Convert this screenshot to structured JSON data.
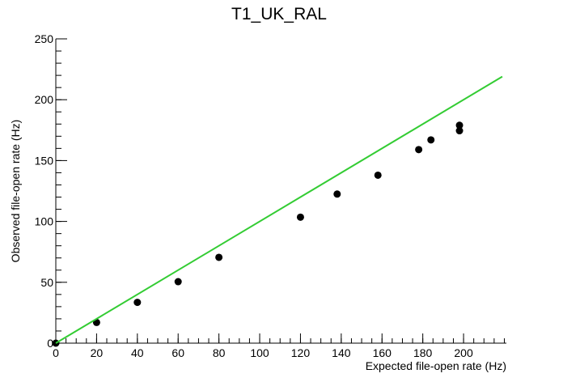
{
  "chart_data": {
    "type": "scatter",
    "title": "T1_UK_RAL",
    "x_label": "Expected file-open rate (Hz)",
    "y_label": "Observed file-open rate (Hz)",
    "series": [
      {
        "style": "markers",
        "color": "#000000",
        "x": [
          0,
          20,
          40,
          60,
          80,
          120,
          138,
          158,
          178,
          184,
          198,
          198
        ],
        "values": [
          0,
          17,
          33.5,
          50.5,
          70.5,
          103.5,
          122.5,
          138,
          159,
          167,
          174.5,
          179
        ]
      },
      {
        "style": "line",
        "color": "#33cc33",
        "x": [
          0,
          219
        ],
        "values": [
          0,
          219
        ]
      }
    ],
    "xlim": [
      0,
      221
    ],
    "ylim": [
      0,
      250
    ],
    "xticks": [
      0,
      20,
      40,
      60,
      80,
      100,
      120,
      140,
      160,
      180,
      200
    ],
    "yticks": [
      0,
      50,
      100,
      150,
      200,
      250
    ],
    "grid": false
  }
}
